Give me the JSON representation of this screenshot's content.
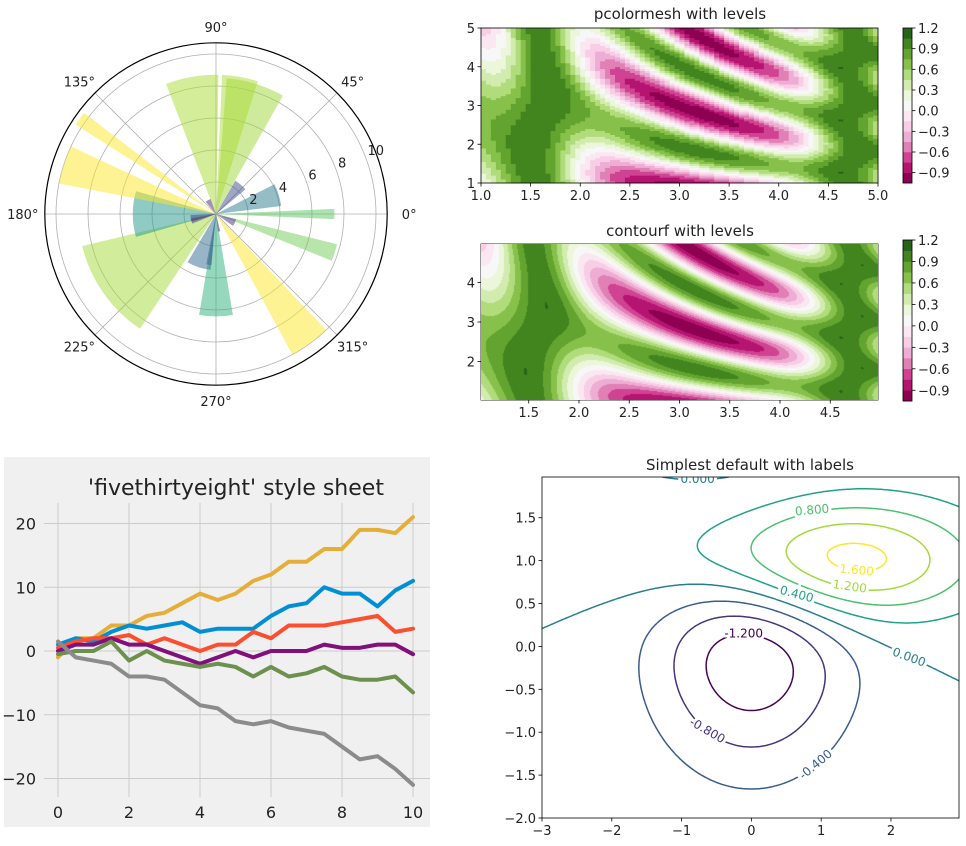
{
  "chart_data": [
    {
      "id": "polar",
      "type": "bar",
      "projection": "polar",
      "colormap": "viridis",
      "alpha": 0.5,
      "rlim": [
        0,
        10.7
      ],
      "theta_ticks": [
        0,
        45,
        90,
        135,
        180,
        225,
        270,
        315
      ],
      "theta_tick_labels": [
        "0°",
        "45°",
        "90°",
        "135°",
        "180°",
        "225°",
        "270°",
        "315°"
      ],
      "r_ticks": [
        2,
        4,
        6,
        8,
        10
      ],
      "r_tick_labels": [
        "2",
        "4",
        "6",
        "8",
        "10"
      ],
      "bars": [
        {
          "theta": 0,
          "r": 7.4,
          "width": 5
        },
        {
          "theta": 342,
          "r": 7.8,
          "width": 8
        },
        {
          "theta": 306,
          "r": 10.0,
          "width": 15
        },
        {
          "theta": 270,
          "r": 6.4,
          "width": 19
        },
        {
          "theta": 252,
          "r": 3.5,
          "width": 25
        },
        {
          "theta": 262,
          "r": 3.2,
          "width": 6
        },
        {
          "theta": 215,
          "r": 8.6,
          "width": 43
        },
        {
          "theta": 180,
          "r": 5.2,
          "width": 32
        },
        {
          "theta": 196,
          "r": 1.6,
          "width": 12
        },
        {
          "theta": 190,
          "r": 1.6,
          "width": 15
        },
        {
          "theta": 162,
          "r": 10.0,
          "width": 14
        },
        {
          "theta": 145,
          "r": 10.4,
          "width": 5
        },
        {
          "theta": 100,
          "r": 8.7,
          "width": 22
        },
        {
          "theta": 73,
          "r": 8.5,
          "width": 25
        },
        {
          "theta": 80,
          "r": 8.7,
          "width": 15
        },
        {
          "theta": 50,
          "r": 2.4,
          "width": 20
        },
        {
          "theta": 17,
          "r": 4.1,
          "width": 20
        },
        {
          "theta": 335,
          "r": 1.3,
          "width": 20
        },
        {
          "theta": 280,
          "r": 1.1,
          "width": 8
        },
        {
          "theta": 120,
          "r": 1.0,
          "width": 20
        }
      ]
    },
    {
      "id": "pcolormesh",
      "type": "heatmap",
      "title": "pcolormesh with levels",
      "z_expression": "Math.pow(Math.sin(x),10) + Math.cos(10 + y*x)*Math.cos(x)",
      "xlim": [
        1,
        5
      ],
      "ylim": [
        1,
        5
      ],
      "step": 0.05,
      "colormap": "PiYG",
      "levels": [
        -1.05,
        -0.9,
        -0.75,
        -0.6,
        -0.45,
        -0.3,
        -0.15,
        0.0,
        0.15,
        0.3,
        0.45,
        0.6,
        0.75,
        0.9,
        1.05,
        1.2
      ],
      "x_ticks": [
        1,
        1.5,
        2,
        2.5,
        3,
        3.5,
        4,
        4.5,
        5
      ],
      "x_tick_labels": [
        "1.0",
        "1.5",
        "2.0",
        "2.5",
        "3.0",
        "3.5",
        "4.0",
        "4.5",
        "5.0"
      ],
      "y_ticks": [
        1,
        2,
        3,
        4,
        5
      ],
      "y_tick_labels": [
        "1",
        "2",
        "3",
        "4",
        "5"
      ],
      "colorbar_ticks": [
        1.2,
        0.9,
        0.6,
        0.3,
        0.0,
        -0.3,
        -0.6,
        -0.9
      ],
      "colorbar_tick_labels": [
        "1.2",
        "0.9",
        "0.6",
        "0.3",
        "0.0",
        "−0.3",
        "−0.6",
        "−0.9"
      ]
    },
    {
      "id": "contourf",
      "type": "heatmap",
      "title": "contourf with levels",
      "z_expression": "Math.pow(Math.sin(x),10) + Math.cos(10 + y*x)*Math.cos(x)",
      "xlim": [
        1.025,
        4.975
      ],
      "ylim": [
        1.025,
        4.975
      ],
      "colormap": "PiYG",
      "levels": [
        -1.05,
        -0.9,
        -0.75,
        -0.6,
        -0.45,
        -0.3,
        -0.15,
        0.0,
        0.15,
        0.3,
        0.45,
        0.6,
        0.75,
        0.9,
        1.05,
        1.2
      ],
      "x_ticks": [
        1.5,
        2,
        2.5,
        3,
        3.5,
        4,
        4.5
      ],
      "x_tick_labels": [
        "1.5",
        "2.0",
        "2.5",
        "3.0",
        "3.5",
        "4.0",
        "4.5"
      ],
      "y_ticks": [
        2,
        3,
        4
      ],
      "y_tick_labels": [
        "2",
        "3",
        "4"
      ],
      "colorbar_ticks": [
        1.2,
        0.9,
        0.6,
        0.3,
        0.0,
        -0.3,
        -0.6,
        -0.9
      ],
      "colorbar_tick_labels": [
        "1.2",
        "0.9",
        "0.6",
        "0.3",
        "0.0",
        "−0.3",
        "−0.6",
        "−0.9"
      ]
    },
    {
      "id": "fivethirtyeight",
      "type": "line",
      "title": "'fivethirtyeight' style sheet",
      "xlim": [
        -0.5,
        10.5
      ],
      "ylim": [
        -23,
        24
      ],
      "x": [
        0,
        0.5,
        1,
        1.5,
        2,
        2.5,
        3,
        3.5,
        4,
        4.5,
        5,
        5.5,
        6,
        6.5,
        7,
        7.5,
        8,
        8.5,
        9,
        9.5,
        10
      ],
      "series": [
        {
          "color": "#e5ae38",
          "values": [
            -1,
            2,
            2,
            4,
            4,
            5.5,
            6,
            7.5,
            9,
            8,
            9,
            11,
            12,
            14,
            14,
            16,
            16,
            19,
            19,
            18.5,
            21
          ]
        },
        {
          "color": "#008fd5",
          "values": [
            1,
            2,
            1.5,
            3,
            4,
            3.5,
            4,
            4.5,
            3,
            3.5,
            3.5,
            3.5,
            5.5,
            7,
            7.5,
            10,
            9,
            9,
            7,
            9.5,
            11
          ]
        },
        {
          "color": "#fc4f30",
          "values": [
            0.5,
            1.5,
            2,
            2,
            2.5,
            1,
            2,
            1,
            0,
            1,
            1,
            3,
            2,
            4,
            4,
            4,
            4.5,
            5,
            5.5,
            3,
            3.5
          ]
        },
        {
          "color": "#810f7c",
          "values": [
            0,
            1,
            1,
            2,
            1,
            1,
            0,
            -1,
            -2,
            -1,
            0,
            -1,
            0,
            0,
            0,
            1,
            0.5,
            0.5,
            1,
            1,
            -0.5
          ]
        },
        {
          "color": "#6d904f",
          "values": [
            -0.5,
            0,
            0,
            1.5,
            -1.5,
            0,
            -1.5,
            -2,
            -2.5,
            -2,
            -2.5,
            -4,
            -2.5,
            -4,
            -3.5,
            -2.5,
            -4,
            -4.5,
            -4.5,
            -4,
            -6.5
          ]
        },
        {
          "color": "#8b8b8b",
          "values": [
            1.5,
            -1,
            -1.5,
            -2,
            -4,
            -4,
            -4.5,
            -6.5,
            -8.5,
            -9,
            -11,
            -11.5,
            -11,
            -12,
            -12.5,
            -13,
            -15,
            -17,
            -16.5,
            -18.5,
            -21
          ]
        }
      ],
      "x_ticks": [
        0,
        2,
        4,
        6,
        8,
        10
      ],
      "x_tick_labels": [
        "0",
        "2",
        "4",
        "6",
        "8",
        "10"
      ],
      "y_ticks": [
        -20,
        -10,
        0,
        10,
        20
      ],
      "y_tick_labels": [
        "−20",
        "−10",
        "0",
        "10",
        "20"
      ]
    },
    {
      "id": "contour",
      "type": "contour",
      "title": "Simplest default with labels",
      "components": [
        {
          "mx": 0,
          "my": 0,
          "sx": 1.0,
          "sy": 1.0,
          "weight": -10
        },
        {
          "mx": 1,
          "my": 1,
          "sx": 1.5,
          "sy": 0.5,
          "weight": 10
        }
      ],
      "xlim": [
        -3,
        2.975
      ],
      "ylim": [
        -2,
        1.975
      ],
      "levels": [
        -1.2,
        -0.8,
        -0.4,
        0.0,
        0.4,
        0.8,
        1.2,
        1.6
      ],
      "level_colors": [
        "#440154",
        "#46327e",
        "#365c8d",
        "#277f8e",
        "#1fa187",
        "#4ac16d",
        "#a0da39",
        "#fde725"
      ],
      "inline_labels": [
        {
          "text": "0.000",
          "level": 0.0
        },
        {
          "text": "0.800",
          "level": 0.8
        },
        {
          "text": "1.600",
          "level": 1.6
        },
        {
          "text": "1.200",
          "level": 1.2
        },
        {
          "text": "0.400",
          "level": 0.4
        },
        {
          "text": "-1.200",
          "level": -1.2
        },
        {
          "text": "0.000",
          "level": 0.0
        },
        {
          "text": "-0.800",
          "level": -0.8
        },
        {
          "text": "-0.400",
          "level": -0.4
        }
      ],
      "x_ticks": [
        -3,
        -2,
        -1,
        0,
        1,
        2
      ],
      "x_tick_labels": [
        "−3",
        "−2",
        "−1",
        "0",
        "1",
        "2"
      ],
      "y_ticks": [
        -2,
        -1.5,
        -1,
        -0.5,
        0,
        0.5,
        1,
        1.5
      ],
      "y_tick_labels": [
        "−2.0",
        "−1.5",
        "−1.0",
        "−0.5",
        "0.0",
        "0.5",
        "1.0",
        "1.5"
      ]
    }
  ]
}
